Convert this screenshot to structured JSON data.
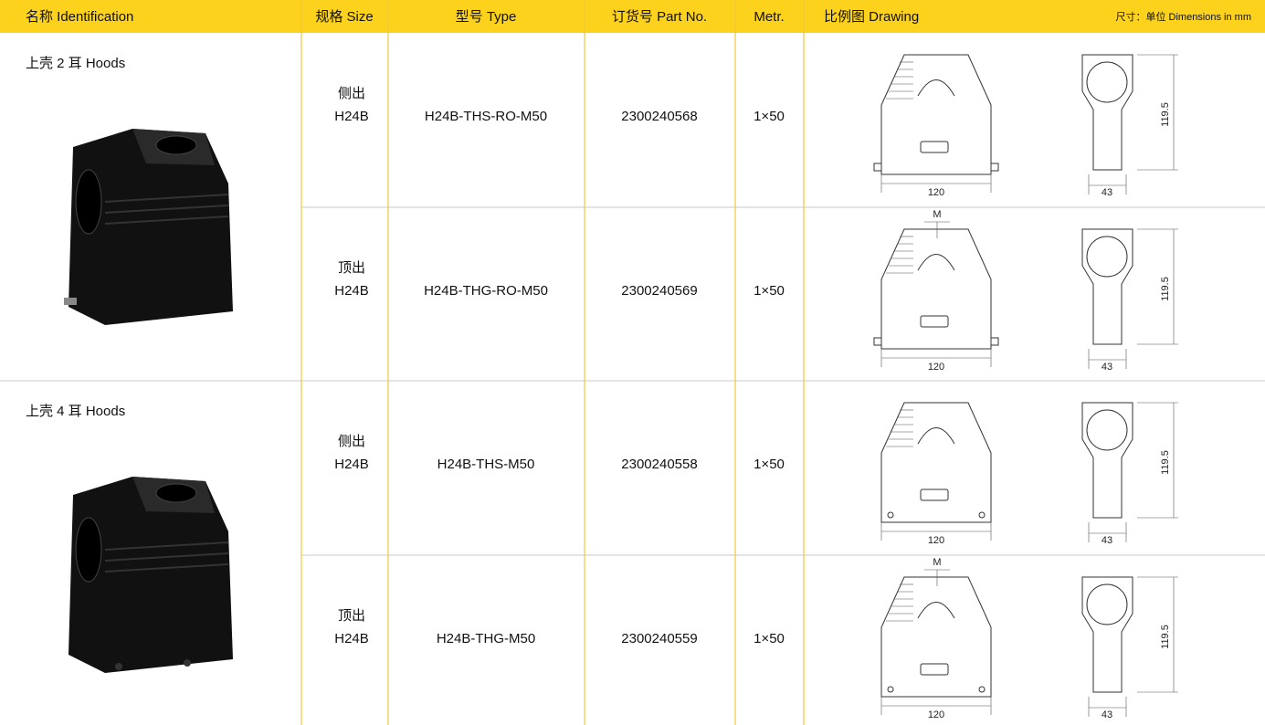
{
  "header": {
    "columns": [
      "名称 Identification",
      "规格 Size",
      "型号 Type",
      "订货号 Part No.",
      "Metr.",
      "比例图 Drawing"
    ],
    "dimensions_note": "尺寸：单位 Dimensions in mm"
  },
  "groups": [
    {
      "name": "上壳 2 耳 Hoods",
      "rows": [
        {
          "exit": "侧出",
          "size": "H24B",
          "type": "H24B-THS-RO-M50",
          "part_no": "2300240568",
          "metr": "1×50",
          "drawing": {
            "width": 120,
            "depth": 43,
            "height": 119.5
          }
        },
        {
          "exit": "顶出",
          "size": "H24B",
          "type": "H24B-THG-RO-M50",
          "part_no": "2300240569",
          "metr": "1×50",
          "drawing": {
            "width": 120,
            "depth": 43,
            "height": 119.5,
            "thread": "M"
          }
        }
      ]
    },
    {
      "name": "上壳 4 耳 Hoods",
      "rows": [
        {
          "exit": "侧出",
          "size": "H24B",
          "type": "H24B-THS-M50",
          "part_no": "2300240558",
          "metr": "1×50",
          "drawing": {
            "width": 120,
            "depth": 43,
            "height": 119.5
          }
        },
        {
          "exit": "顶出",
          "size": "H24B",
          "type": "H24B-THG-M50",
          "part_no": "2300240559",
          "metr": "1×50",
          "drawing": {
            "width": 120,
            "depth": 43,
            "height": 119.5,
            "thread": "M"
          }
        }
      ]
    }
  ]
}
